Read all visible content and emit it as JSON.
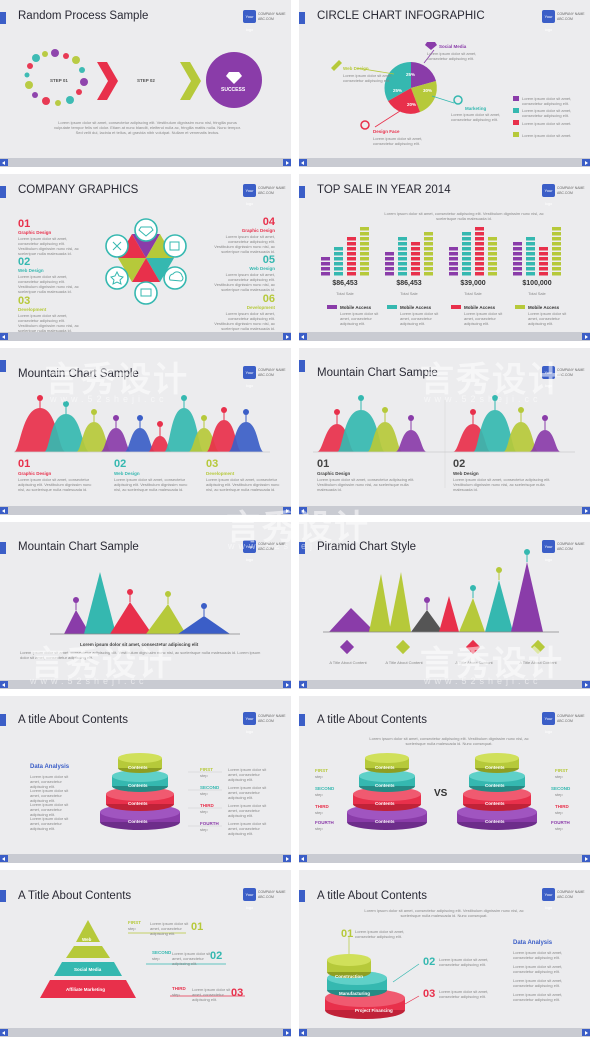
{
  "colors": {
    "accent": "#3b5ec7",
    "red": "#e8304b",
    "teal": "#35b8b0",
    "lime": "#b6c93a",
    "purple": "#8a3ca9"
  },
  "logo": {
    "square_text": "Your logo",
    "line1": "COMPANY NAME",
    "line2": "ABC.COM"
  },
  "watermark": {
    "brand": "言秀设计",
    "url": "www.52sheji.cc"
  },
  "s1": {
    "title": "Random Process Sample",
    "step1": "STEP 01",
    "step2": "STEP 02",
    "success": "SUCCESS",
    "body": "Lorem ipsum dolor sit amet, consectetur adipiscing elit. Vestibulum dignissim nunc nisl, fringilla purus vulputate tempor felis vel dolor. Etiam at nunc blandit, eleifend nulla ac, fringilla mattis nulla. Nunc tempor. Sed velit dui, lacinia et tellus, at gravida nibh volutpat. Nullam et venenatis lectus."
  },
  "s2": {
    "title": "CIRCLE CHART INFOGRAPHIC",
    "labels": {
      "social": "Social Media",
      "web": "Web Design",
      "marketing": "Marketing",
      "face": "Design Face"
    },
    "pcts": [
      "25%",
      "30%",
      "25%",
      "20%"
    ],
    "small": "Lorem ipsum dolor sit amet, consectetur adipiscing elit.",
    "legend": [
      "Lorem ipsum dolor sit amet, consectetur adipiscing elit.",
      "Lorem ipsum dolor sit amet, consectetur adipiscing elit.",
      "Lorem ipsum dolor sit amet.",
      "Lorem ipsum dolor sit amet."
    ]
  },
  "s3": {
    "title": "COMPANY GRAPHICS",
    "items": [
      {
        "n": "01",
        "t": "Graphic Design"
      },
      {
        "n": "02",
        "t": "Web Design"
      },
      {
        "n": "03",
        "t": "Development"
      },
      {
        "n": "04",
        "t": "Graphic Design"
      },
      {
        "n": "05",
        "t": "Web Design"
      },
      {
        "n": "06",
        "t": "Development"
      }
    ],
    "body": "Lorem ipsum dolor sit amet, consectetur adipiscing elit. Vestibulum dignissim nunc nisl, ac sceleripue nulla malesuada id."
  },
  "s4": {
    "title": "TOP SALE IN YEAR 2014",
    "intro": "Lorem ipsum dolor sit amet, consectetur adipiscing elit. Vestibulum dignissim nunc nisl, ac scelerisque nulla malesuada id.",
    "stats": [
      "$86,453",
      "$86,453",
      "$39,000",
      "$100,000"
    ],
    "stat_label": "Total Sale",
    "legend": [
      "Mobile Access",
      "Mobile Access",
      "Mobile Access",
      "Mobile Access"
    ],
    "legend_sub": "Lorem ipsum dolor sit amet, consectetur adipiscing elit."
  },
  "s5": {
    "title": "Mountain Chart Sample",
    "items": [
      {
        "n": "01",
        "t": "Graphic Design"
      },
      {
        "n": "02",
        "t": "Web Design"
      },
      {
        "n": "03",
        "t": "Development"
      }
    ],
    "body": "Lorem ipsum dolor sit amet, consectetur adipiscing elit. Vestibulum dignissim nunc nisl, ac scelerisque nulla malesuada id."
  },
  "s6": {
    "title": "Mountain Chart Sample",
    "items": [
      {
        "n": "01",
        "t": "Graphic Design"
      },
      {
        "n": "02",
        "t": "Web Design"
      }
    ],
    "body": "Lorem ipsum dolor sit amet, consectetur adipiscing elit. Vestibulum dignissim nunc nisl, ac scelerisque nulla malesuada id."
  },
  "s7": {
    "title": "Mountain Chart Sample",
    "caption": "Lorem ipsum dolor sit amet, consectetur adipiscing elit",
    "body": "Lorem ipsum dolor sit amet, consectetur adipiscing elit. Vestibulum dignissim nunc nisl, ac scelerisque nulla malesuada id. Lorem ipsum dolor sit amet, consectetur adipiscing elit."
  },
  "s8": {
    "title": "Piramid Chart Style",
    "items": [
      "A Title About Content",
      "A Title About Content",
      "A Title About Content",
      "A Title About Content"
    ]
  },
  "s9": {
    "title": "A title About Contents",
    "da": "Data Analysis",
    "contents": "Contents",
    "steps": [
      {
        "t": "FIRST",
        "s": "step"
      },
      {
        "t": "SECOND",
        "s": "step"
      },
      {
        "t": "THIRD",
        "s": "step"
      },
      {
        "t": "FOURTH",
        "s": "step"
      }
    ],
    "checks": [
      "Lorem ipsum dolor sit amet, consectetur adipiscing elit.",
      "Lorem ipsum dolor sit amet, consectetur adipiscing elit.",
      "Lorem ipsum dolor sit amet, consectetur adipiscing elit.",
      "Lorem ipsum dolor sit amet, consectetur adipiscing elit."
    ],
    "steptext": "Lorem ipsum dolor sit amet, consectetur adipiscing elit."
  },
  "s10": {
    "title": "A title About Contents",
    "vs": "VS",
    "contents": "Contents",
    "intro": "Lorem ipsum dolor sit amet, consectetur adipiscing elit. Vestibulum dignissim nunc nisl, ac scelerisque nulla malesuada id. Nunc consequat.",
    "steps": [
      {
        "t": "FIRST",
        "s": "step"
      },
      {
        "t": "SECOND",
        "s": "step"
      },
      {
        "t": "THIRD",
        "s": "step"
      },
      {
        "t": "FOURTH",
        "s": "step"
      }
    ]
  },
  "s11": {
    "title": "A Title About Contents",
    "layers": [
      "Web",
      "Social Media",
      "Affiliate Marketing"
    ],
    "steps": [
      {
        "t": "FIRST",
        "s": "step",
        "n": "01"
      },
      {
        "t": "SECOND",
        "s": "step",
        "n": "02"
      },
      {
        "t": "THIRD",
        "s": "step",
        "n": "03"
      }
    ],
    "steptext": "Lorem ipsum dolor sit amet, consectetur adipiscing elit."
  },
  "s12": {
    "title": "A title About Contents",
    "da": "Data Analysis",
    "intro": "Lorem ipsum dolor sit amet, consectetur adipiscing elit. Vestibulum dignissim nunc nisl, ac scelerisque nulla malesuada id. Nunc consequat.",
    "layers": [
      "Construction",
      "Manufacturing",
      "Project Financing"
    ],
    "nums": [
      "01",
      "02",
      "03"
    ],
    "steptext": "Lorem ipsum dolor sit amet, consectetur adipiscing elit.",
    "checks": [
      "Lorem ipsum dolor sit amet, consectetur adipiscing elit.",
      "Lorem ipsum dolor sit amet, consectetur adipiscing elit.",
      "Lorem ipsum dolor sit amet, consectetur adipiscing elit.",
      "Lorem ipsum dolor sit amet, consectetur adipiscing elit."
    ]
  }
}
